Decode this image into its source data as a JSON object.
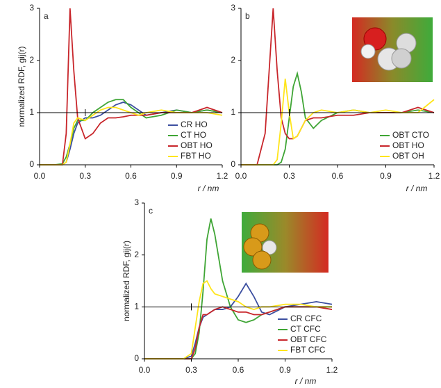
{
  "chart_data": [
    {
      "type": "line",
      "label": "a",
      "x_label": "r / nm",
      "y_label": "normalized RDF, gij(r)",
      "x": [
        0,
        0.1,
        0.15,
        0.175,
        0.2,
        0.225,
        0.25,
        0.3,
        0.35,
        0.4,
        0.45,
        0.5,
        0.55,
        0.6,
        0.65,
        0.7,
        0.8,
        0.9,
        1.0,
        1.1,
        1.2
      ],
      "series": [
        {
          "name": "CR HO",
          "color": "#3c4fa0",
          "values": [
            0,
            0,
            0,
            0.05,
            0.3,
            0.6,
            0.8,
            0.9,
            0.9,
            0.95,
            1.05,
            1.15,
            1.2,
            1.15,
            1.05,
            0.95,
            1.0,
            1.05,
            1.0,
            1.05,
            1.0
          ]
        },
        {
          "name": "CT HO",
          "color": "#3fa535",
          "values": [
            0,
            0,
            0.02,
            0.15,
            0.4,
            0.7,
            0.85,
            0.85,
            1.0,
            1.1,
            1.2,
            1.25,
            1.25,
            1.1,
            1.0,
            0.9,
            0.95,
            1.05,
            1.0,
            1.05,
            1.0
          ]
        },
        {
          "name": "OBT HO",
          "color": "#c8262b",
          "values": [
            0,
            0,
            0,
            0.6,
            3.0,
            1.8,
            0.9,
            0.5,
            0.6,
            0.8,
            0.9,
            0.9,
            0.92,
            0.95,
            0.95,
            0.95,
            1.0,
            1.0,
            1.0,
            1.1,
            1.0
          ]
        },
        {
          "name": "FBT HO",
          "color": "#ffe51a",
          "values": [
            0,
            0,
            0,
            0.05,
            0.4,
            0.8,
            0.9,
            0.85,
            0.95,
            1.05,
            1.1,
            1.1,
            1.05,
            1.0,
            0.95,
            1.0,
            1.05,
            1.0,
            1.0,
            1.0,
            0.95
          ]
        }
      ],
      "xlim": [
        0,
        1.2
      ],
      "ylim": [
        0,
        3
      ],
      "xticks": [
        {
          "value": 0,
          "label": "0.0"
        },
        0.3,
        0.6,
        0.9,
        1.2
      ],
      "yticks": [
        0,
        1,
        2,
        3
      ],
      "reference_line": 1,
      "reference_mark_x": 0.3,
      "legend": "lower right"
    },
    {
      "type": "line",
      "label": "b",
      "x_label": "r / nm",
      "x": [
        0,
        0.1,
        0.15,
        0.2,
        0.225,
        0.25,
        0.275,
        0.3,
        0.325,
        0.35,
        0.375,
        0.4,
        0.45,
        0.5,
        0.6,
        0.7,
        0.8,
        0.9,
        1.0,
        1.1,
        1.2
      ],
      "series": [
        {
          "name": "OBT CTO",
          "color": "#3fa535",
          "values": [
            0,
            0,
            0,
            0,
            0,
            0.05,
            0.3,
            0.9,
            1.5,
            1.75,
            1.4,
            0.9,
            0.7,
            0.85,
            1.0,
            1.05,
            1.0,
            1.0,
            1.0,
            1.05,
            1.0
          ]
        },
        {
          "name": "OBT HO",
          "color": "#c8262b",
          "values": [
            0,
            0,
            0.6,
            3.0,
            1.8,
            0.9,
            0.6,
            0.5,
            0.5,
            0.55,
            0.7,
            0.85,
            0.9,
            0.9,
            0.95,
            0.95,
            1.0,
            1.0,
            1.0,
            1.1,
            1.0
          ]
        },
        {
          "name": "OBT OH",
          "color": "#ffe51a",
          "values": [
            0,
            0,
            0,
            0,
            0.1,
            0.8,
            1.65,
            1.0,
            0.5,
            0.55,
            0.7,
            0.85,
            1.0,
            1.05,
            1.0,
            1.05,
            1.0,
            1.05,
            1.0,
            1.0,
            1.25
          ]
        }
      ],
      "xlim": [
        0,
        1.2
      ],
      "ylim": [
        0,
        3
      ],
      "xticks": [
        {
          "value": 0,
          "label": "0.0"
        },
        0.3,
        0.6,
        0.9,
        1.2
      ],
      "yticks": [
        0,
        1,
        2,
        3
      ],
      "reference_line": 1,
      "reference_mark_x": 0.3,
      "legend": "lower right"
    },
    {
      "type": "line",
      "label": "c",
      "x_label": "r / nm",
      "y_label": "normalized RDF, gij(r)",
      "x": [
        0,
        0.25,
        0.3,
        0.325,
        0.35,
        0.375,
        0.4,
        0.425,
        0.45,
        0.5,
        0.55,
        0.6,
        0.65,
        0.7,
        0.75,
        0.8,
        0.9,
        1.0,
        1.1,
        1.2
      ],
      "series": [
        {
          "name": "CR CFC",
          "color": "#3c4fa0",
          "values": [
            0,
            0,
            0.05,
            0.3,
            0.6,
            0.8,
            0.85,
            0.9,
            0.95,
            0.95,
            1.0,
            1.2,
            1.45,
            1.2,
            0.9,
            0.85,
            1.0,
            1.05,
            1.1,
            1.05
          ]
        },
        {
          "name": "CT CFC",
          "color": "#3fa535",
          "values": [
            0,
            0,
            0,
            0.1,
            0.5,
            1.3,
            2.3,
            2.7,
            2.4,
            1.5,
            1.0,
            0.75,
            0.7,
            0.75,
            0.85,
            0.9,
            1.0,
            1.0,
            1.0,
            1.0
          ]
        },
        {
          "name": "OBT CFC",
          "color": "#c8262b",
          "values": [
            0,
            0,
            0,
            0.2,
            0.6,
            0.85,
            0.85,
            0.9,
            0.95,
            1.0,
            0.95,
            0.9,
            0.9,
            0.85,
            0.85,
            0.9,
            1.0,
            1.0,
            1.0,
            0.95
          ]
        },
        {
          "name": "FBT CFC",
          "color": "#ffe51a",
          "values": [
            0,
            0,
            0.1,
            0.6,
            1.1,
            1.45,
            1.5,
            1.35,
            1.25,
            1.2,
            1.15,
            1.1,
            1.0,
            0.95,
            1.0,
            1.0,
            1.05,
            1.05,
            1.0,
            1.0
          ]
        }
      ],
      "xlim": [
        0,
        1.2
      ],
      "ylim": [
        0,
        3
      ],
      "xticks": [
        {
          "value": 0,
          "label": "0.0"
        },
        0.3,
        0.6,
        0.9,
        1.2
      ],
      "yticks": [
        0,
        1,
        2,
        3
      ],
      "reference_line": 1,
      "reference_mark_x": 0.3,
      "legend": "lower right"
    }
  ]
}
